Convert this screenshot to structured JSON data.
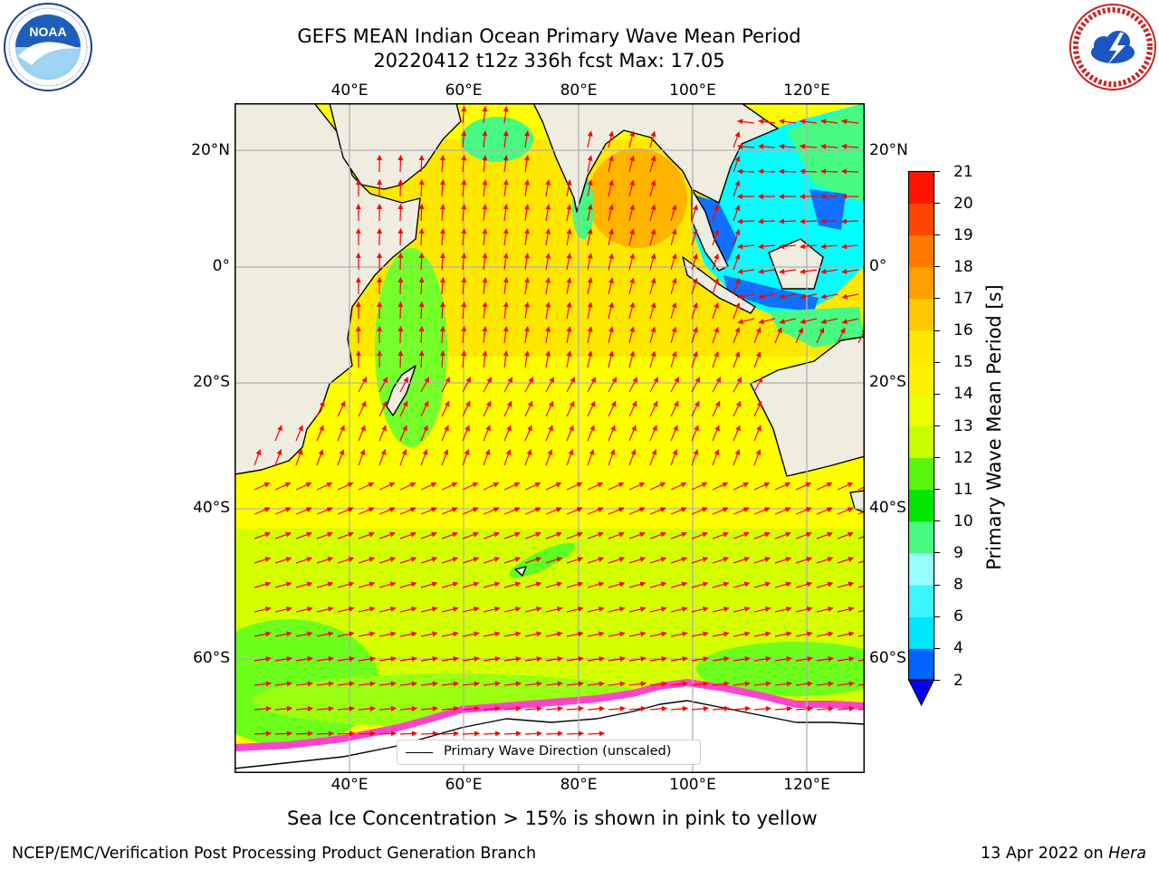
{
  "title": {
    "line1": "GEFS MEAN Indian Ocean Primary Wave Mean Period",
    "line2": "20220412 t12z 336h fcst   Max: 17.05"
  },
  "logos": {
    "left": {
      "name": "NOAA",
      "ring_text": "NATIONAL OCEANIC AND ATMOSPHERIC ADMINISTRATION · U.S. DEPARTMENT OF COMMERCE"
    },
    "right": {
      "name": "NATIONAL WEATHER SERVICE"
    }
  },
  "axes": {
    "lon_ticks": [
      "40°E",
      "60°E",
      "80°E",
      "100°E",
      "120°E"
    ],
    "lat_ticks": [
      "20°N",
      "0°",
      "20°S",
      "40°S",
      "60°S"
    ]
  },
  "map": {
    "lon_range": [
      20,
      130
    ],
    "lat_range": [
      -73,
      27
    ],
    "ocean_colors": {
      "low_lat_yellow": "#ffe800",
      "mid_yellow": "#ffff00",
      "bay_orange": "#ffb100",
      "southern_lime": "#c8ff00",
      "green": "#5dff22",
      "cyan": "#00ffff",
      "blue": "#0060ff"
    },
    "land_color": "#efede0",
    "arrow_color": "#ff0000"
  },
  "legend": {
    "label": "Primary Wave Direction (unscaled)"
  },
  "colorbar": {
    "label": "Primary Wave Mean Period [s]",
    "ticks": [
      "2",
      "4",
      "6",
      "8",
      "9",
      "10",
      "11",
      "12",
      "13",
      "14",
      "15",
      "16",
      "17",
      "18",
      "19",
      "20",
      "21"
    ],
    "colors": [
      "#0064ff",
      "#00e6ff",
      "#3cf6ff",
      "#96ffff",
      "#46fa82",
      "#00e600",
      "#5af50f",
      "#c8ff00",
      "#ebff00",
      "#fff000",
      "#ffe800",
      "#ffc800",
      "#ffa000",
      "#ff7800",
      "#ff4600",
      "#ff1400"
    ],
    "underflow_color": "#0000ff"
  },
  "subtitle": "Sea Ice Concentration > 15% is shown in pink to yellow",
  "footer": {
    "left": "NCEP/EMC/Verification Post Processing Product Generation Branch",
    "right_date": "13 Apr 2022 on ",
    "right_machine": "Hera"
  }
}
